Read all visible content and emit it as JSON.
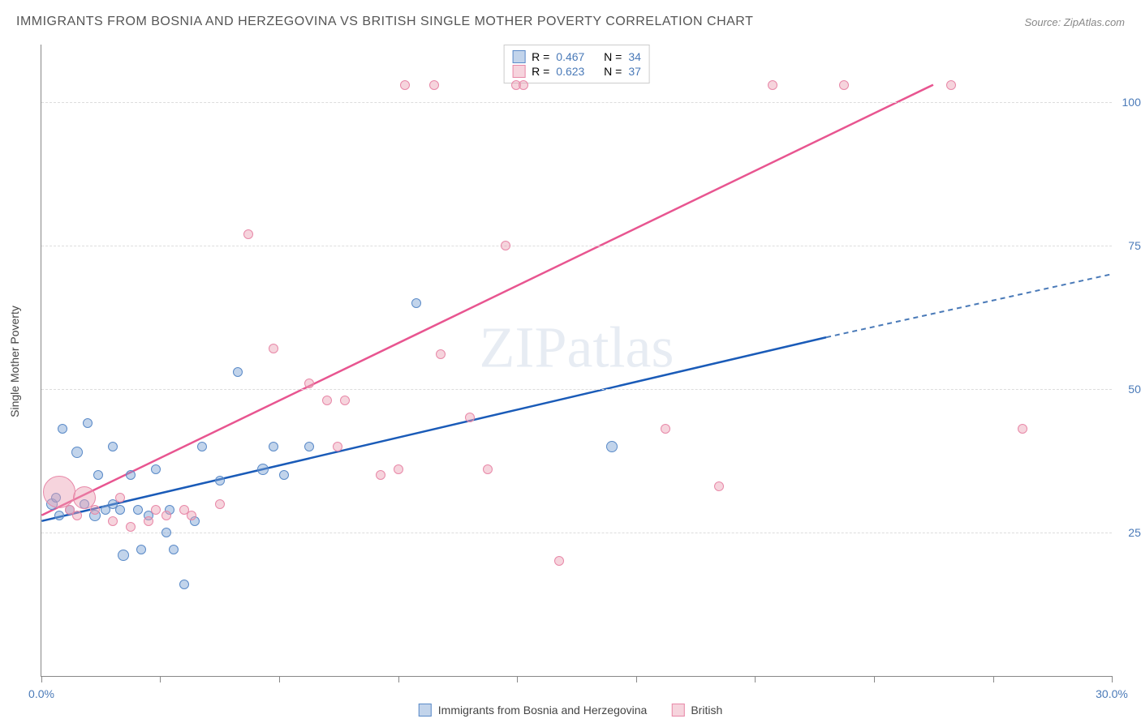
{
  "title": "IMMIGRANTS FROM BOSNIA AND HERZEGOVINA VS BRITISH SINGLE MOTHER POVERTY CORRELATION CHART",
  "source": "Source: ZipAtlas.com",
  "watermark": "ZIPatlas",
  "y_axis_label": "Single Mother Poverty",
  "chart": {
    "type": "scatter",
    "xlim": [
      0,
      30
    ],
    "ylim": [
      0,
      110
    ],
    "x_ticks": [
      0,
      3.33,
      6.67,
      10,
      13.33,
      16.67,
      20,
      23.33,
      26.67,
      30
    ],
    "x_tick_labels": {
      "0": "0.0%",
      "30": "30.0%"
    },
    "y_ticks": [
      25,
      50,
      75,
      100
    ],
    "y_tick_labels": [
      "25.0%",
      "50.0%",
      "75.0%",
      "100.0%"
    ],
    "grid_color": "#dddddd",
    "background_color": "#ffffff",
    "axis_color": "#888888",
    "tick_label_color": "#4a7ab8",
    "series": [
      {
        "name": "Immigrants from Bosnia and Herzegovina",
        "color_fill": "rgba(120, 160, 210, 0.45)",
        "color_stroke": "#5a8ac8",
        "trend_color": "#1a5bb8",
        "trend_dash_color": "#4a7ab8",
        "R": "0.467",
        "N": "34",
        "trend": {
          "x1": 0,
          "y1": 27,
          "x2_solid": 22,
          "y2_solid": 59,
          "x2": 30,
          "y2": 70
        },
        "points": [
          {
            "x": 0.3,
            "y": 30,
            "r": 7
          },
          {
            "x": 0.4,
            "y": 31,
            "r": 6
          },
          {
            "x": 0.5,
            "y": 28,
            "r": 6
          },
          {
            "x": 0.6,
            "y": 43,
            "r": 6
          },
          {
            "x": 0.8,
            "y": 29,
            "r": 6
          },
          {
            "x": 1.0,
            "y": 39,
            "r": 7
          },
          {
            "x": 1.2,
            "y": 30,
            "r": 6
          },
          {
            "x": 1.3,
            "y": 44,
            "r": 6
          },
          {
            "x": 1.5,
            "y": 28,
            "r": 7
          },
          {
            "x": 1.6,
            "y": 35,
            "r": 6
          },
          {
            "x": 1.8,
            "y": 29,
            "r": 6
          },
          {
            "x": 2.0,
            "y": 40,
            "r": 6
          },
          {
            "x": 2.2,
            "y": 29,
            "r": 6
          },
          {
            "x": 2.3,
            "y": 21,
            "r": 7
          },
          {
            "x": 2.5,
            "y": 35,
            "r": 6
          },
          {
            "x": 2.7,
            "y": 29,
            "r": 6
          },
          {
            "x": 2.8,
            "y": 22,
            "r": 6
          },
          {
            "x": 3.0,
            "y": 28,
            "r": 6
          },
          {
            "x": 3.2,
            "y": 36,
            "r": 6
          },
          {
            "x": 3.5,
            "y": 25,
            "r": 6
          },
          {
            "x": 3.6,
            "y": 29,
            "r": 6
          },
          {
            "x": 3.7,
            "y": 22,
            "r": 6
          },
          {
            "x": 4.0,
            "y": 16,
            "r": 6
          },
          {
            "x": 4.3,
            "y": 27,
            "r": 6
          },
          {
            "x": 4.5,
            "y": 40,
            "r": 6
          },
          {
            "x": 5.0,
            "y": 34,
            "r": 6
          },
          {
            "x": 5.5,
            "y": 53,
            "r": 6
          },
          {
            "x": 6.2,
            "y": 36,
            "r": 7
          },
          {
            "x": 6.5,
            "y": 40,
            "r": 6
          },
          {
            "x": 6.8,
            "y": 35,
            "r": 6
          },
          {
            "x": 7.5,
            "y": 40,
            "r": 6
          },
          {
            "x": 10.5,
            "y": 65,
            "r": 6
          },
          {
            "x": 16.0,
            "y": 40,
            "r": 7
          },
          {
            "x": 2.0,
            "y": 30,
            "r": 6
          }
        ]
      },
      {
        "name": "British",
        "color_fill": "rgba(235, 160, 180, 0.45)",
        "color_stroke": "#e888a8",
        "trend_color": "#e85590",
        "R": "0.623",
        "N": "37",
        "trend": {
          "x1": 0,
          "y1": 28,
          "x2_solid": 25,
          "y2_solid": 103,
          "x2": 25,
          "y2": 103
        },
        "points": [
          {
            "x": 0.5,
            "y": 32,
            "r": 20
          },
          {
            "x": 1.2,
            "y": 31,
            "r": 14
          },
          {
            "x": 0.8,
            "y": 29,
            "r": 6
          },
          {
            "x": 1.5,
            "y": 29,
            "r": 6
          },
          {
            "x": 2.0,
            "y": 27,
            "r": 6
          },
          {
            "x": 2.5,
            "y": 26,
            "r": 6
          },
          {
            "x": 3.0,
            "y": 27,
            "r": 6
          },
          {
            "x": 3.5,
            "y": 28,
            "r": 6
          },
          {
            "x": 4.0,
            "y": 29,
            "r": 6
          },
          {
            "x": 5.0,
            "y": 30,
            "r": 6
          },
          {
            "x": 5.8,
            "y": 77,
            "r": 6
          },
          {
            "x": 6.5,
            "y": 57,
            "r": 6
          },
          {
            "x": 7.5,
            "y": 51,
            "r": 6
          },
          {
            "x": 8.0,
            "y": 48,
            "r": 6
          },
          {
            "x": 8.3,
            "y": 40,
            "r": 6
          },
          {
            "x": 8.5,
            "y": 48,
            "r": 6
          },
          {
            "x": 9.5,
            "y": 35,
            "r": 6
          },
          {
            "x": 10.0,
            "y": 36,
            "r": 6
          },
          {
            "x": 10.2,
            "y": 103,
            "r": 6
          },
          {
            "x": 11.0,
            "y": 103,
            "r": 6
          },
          {
            "x": 11.2,
            "y": 56,
            "r": 6
          },
          {
            "x": 12.0,
            "y": 45,
            "r": 6
          },
          {
            "x": 12.5,
            "y": 36,
            "r": 6
          },
          {
            "x": 13.0,
            "y": 75,
            "r": 6
          },
          {
            "x": 13.3,
            "y": 103,
            "r": 6
          },
          {
            "x": 13.5,
            "y": 103,
            "r": 6
          },
          {
            "x": 14.5,
            "y": 20,
            "r": 6
          },
          {
            "x": 17.5,
            "y": 43,
            "r": 6
          },
          {
            "x": 19.0,
            "y": 33,
            "r": 6
          },
          {
            "x": 20.5,
            "y": 103,
            "r": 6
          },
          {
            "x": 22.5,
            "y": 103,
            "r": 6
          },
          {
            "x": 25.5,
            "y": 103,
            "r": 6
          },
          {
            "x": 27.5,
            "y": 43,
            "r": 6
          },
          {
            "x": 1.0,
            "y": 28,
            "r": 6
          },
          {
            "x": 2.2,
            "y": 31,
            "r": 6
          },
          {
            "x": 3.2,
            "y": 29,
            "r": 6
          },
          {
            "x": 4.2,
            "y": 28,
            "r": 6
          }
        ]
      }
    ]
  },
  "stats_labels": {
    "R": "R =",
    "N": "N ="
  },
  "legend": {
    "series1": "Immigrants from Bosnia and Herzegovina",
    "series2": "British"
  }
}
